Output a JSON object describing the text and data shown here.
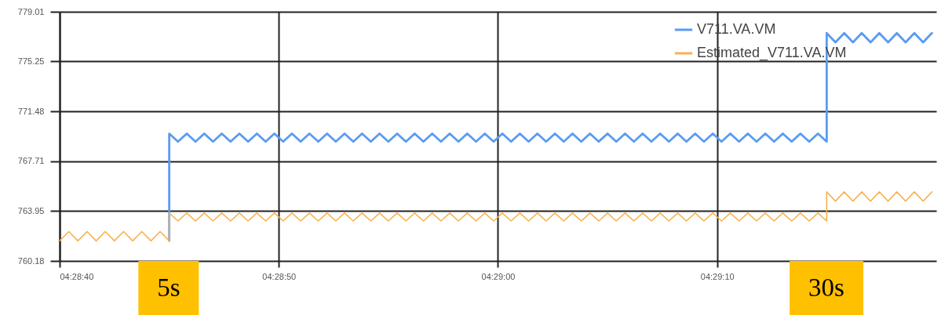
{
  "chart_data": {
    "type": "line",
    "x": [
      4.477778,
      4.477894,
      4.478009,
      4.478125,
      4.478241,
      4.478356,
      4.478472,
      4.478588,
      4.478704,
      4.478819,
      4.478935,
      4.479051,
      4.479167,
      4.479167,
      4.479278,
      4.479389,
      4.4795,
      4.479611,
      4.479722,
      4.479833,
      4.479944,
      4.480056,
      4.480167,
      4.480278,
      4.480389,
      4.4805,
      4.480611,
      4.480722,
      4.480833,
      4.480944,
      4.481056,
      4.481167,
      4.481278,
      4.481389,
      4.4815,
      4.481611,
      4.481722,
      4.481833,
      4.481944,
      4.482056,
      4.482167,
      4.482278,
      4.482389,
      4.4825,
      4.482611,
      4.482722,
      4.482833,
      4.482944,
      4.483056,
      4.483167,
      4.483278,
      4.483389,
      4.4835,
      4.483611,
      4.483722,
      4.483833,
      4.483944,
      4.484056,
      4.484167,
      4.484278,
      4.484389,
      4.4845,
      4.484611,
      4.484722,
      4.484833,
      4.484944,
      4.485056,
      4.485167,
      4.485278,
      4.485389,
      4.4855,
      4.485611,
      4.485722,
      4.485833,
      4.485944,
      4.486056,
      4.486167,
      4.486278,
      4.486389,
      4.4865,
      4.486611,
      4.486722,
      4.486833,
      4.486944,
      4.487056,
      4.487167,
      4.487278,
      4.487389,
      4.4875,
      4.4875,
      4.487611,
      4.487722,
      4.487833,
      4.487944,
      4.488056,
      4.488167,
      4.488278,
      4.488389,
      4.4885,
      4.488611,
      4.488722,
      4.488833
    ],
    "series": [
      {
        "name": "V711.VA.VM",
        "color": "#5a9bf2",
        "values": [
          null,
          null,
          null,
          null,
          null,
          null,
          null,
          null,
          null,
          null,
          null,
          null,
          761.7,
          769.8,
          769.2,
          769.8,
          769.2,
          769.8,
          769.2,
          769.8,
          769.2,
          769.8,
          769.2,
          769.8,
          769.2,
          769.8,
          769.2,
          769.8,
          769.2,
          769.8,
          769.2,
          769.8,
          769.2,
          769.8,
          769.2,
          769.8,
          769.2,
          769.8,
          769.2,
          769.8,
          769.2,
          769.8,
          769.2,
          769.8,
          769.2,
          769.8,
          769.2,
          769.8,
          769.2,
          769.8,
          769.2,
          769.8,
          769.2,
          769.8,
          769.2,
          769.8,
          769.2,
          769.8,
          769.2,
          769.8,
          769.2,
          769.8,
          769.2,
          769.8,
          769.2,
          769.8,
          769.2,
          769.8,
          769.2,
          769.8,
          769.2,
          769.8,
          769.2,
          769.8,
          769.2,
          769.8,
          769.2,
          769.8,
          769.2,
          769.8,
          769.2,
          769.8,
          769.2,
          769.8,
          769.2,
          769.8,
          769.2,
          769.8,
          769.2,
          777.4,
          776.7,
          777.4,
          776.7,
          777.4,
          776.7,
          777.4,
          776.7,
          777.4,
          776.7,
          777.4,
          776.7,
          777.4
        ]
      },
      {
        "name": "Estimated_V711.VA.VM",
        "color": "#f7b24f",
        "values": [
          761.7,
          762.4,
          761.7,
          762.4,
          761.7,
          762.4,
          761.7,
          762.4,
          761.7,
          762.4,
          761.7,
          762.4,
          761.7,
          763.8,
          763.2,
          763.8,
          763.2,
          763.8,
          763.2,
          763.8,
          763.2,
          763.8,
          763.2,
          763.8,
          763.2,
          763.8,
          763.2,
          763.8,
          763.2,
          763.8,
          763.2,
          763.8,
          763.2,
          763.8,
          763.2,
          763.8,
          763.2,
          763.8,
          763.2,
          763.8,
          763.2,
          763.8,
          763.2,
          763.8,
          763.2,
          763.8,
          763.2,
          763.8,
          763.2,
          763.8,
          763.2,
          763.8,
          763.2,
          763.8,
          763.2,
          763.8,
          763.2,
          763.8,
          763.2,
          763.8,
          763.2,
          763.8,
          763.2,
          763.8,
          763.2,
          763.8,
          763.2,
          763.8,
          763.2,
          763.8,
          763.2,
          763.8,
          763.2,
          763.8,
          763.2,
          763.8,
          763.2,
          763.8,
          763.2,
          763.8,
          763.2,
          763.8,
          763.2,
          763.8,
          763.2,
          763.8,
          763.2,
          763.8,
          763.2,
          765.4,
          764.7,
          765.4,
          764.7,
          765.4,
          764.7,
          765.4,
          764.7,
          765.4,
          764.7,
          765.4,
          764.7,
          765.4
        ]
      }
    ],
    "xlim": [
      4.477778,
      4.488889
    ],
    "xticks": [
      {
        "value": 4.477778,
        "label": "04:28:40"
      },
      {
        "value": 4.480556,
        "label": "04:28:50"
      },
      {
        "value": 4.483333,
        "label": "04:29:00"
      },
      {
        "value": 4.486111,
        "label": "04:29:10"
      }
    ],
    "ylim": [
      760.18,
      779.01
    ],
    "yticks": [
      760.18,
      763.95,
      767.71,
      771.48,
      775.25,
      779.01
    ],
    "grid": true,
    "legend": "top right",
    "annotations": [
      "5s",
      "30s"
    ]
  }
}
